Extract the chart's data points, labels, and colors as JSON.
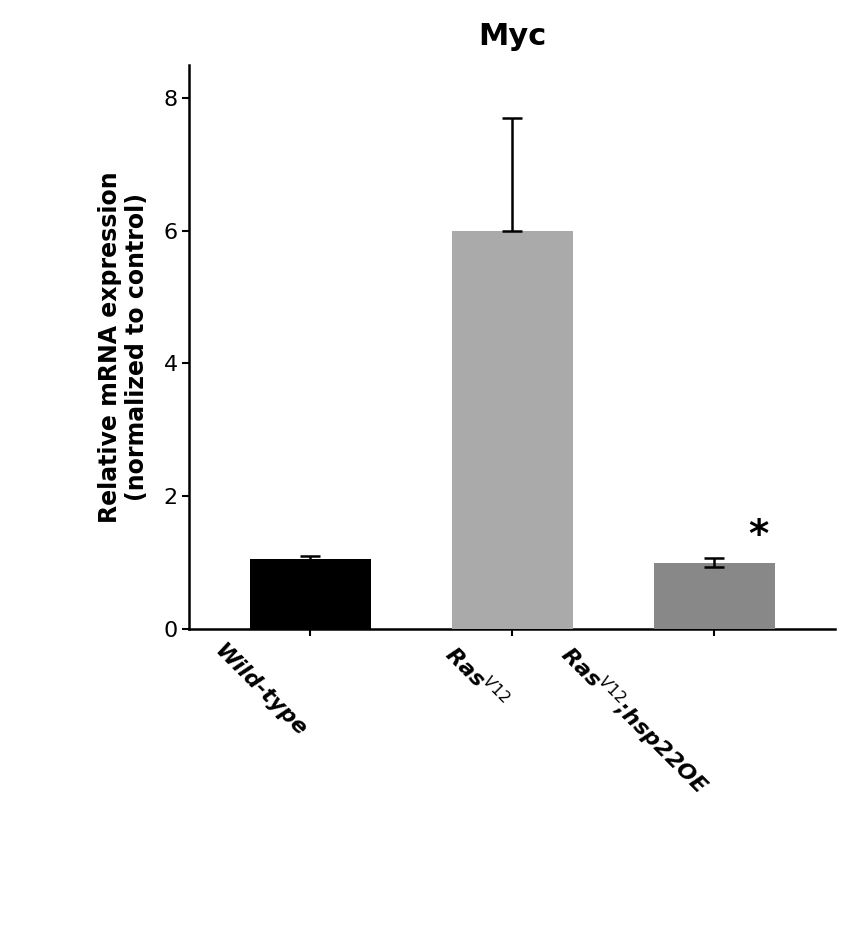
{
  "title": "Myc",
  "ylabel": "Relative mRNA expression\n(normalized to control)",
  "categories": [
    "Wild-type",
    "Ras$^{V12}$",
    "Ras$^{V12}$;hsp22OE"
  ],
  "values": [
    1.05,
    6.0,
    1.0
  ],
  "errors_up": [
    0.05,
    1.7,
    0.07
  ],
  "errors_down": [
    0.05,
    0.0,
    0.07
  ],
  "bar_colors": [
    "#000000",
    "#aaaaaa",
    "#888888"
  ],
  "ylim": [
    0,
    8.5
  ],
  "yticks": [
    0,
    2,
    4,
    6,
    8
  ],
  "bar_width": 0.6,
  "significance": [
    false,
    false,
    true
  ],
  "significance_symbol": "*",
  "title_fontsize": 22,
  "ylabel_fontsize": 17,
  "tick_fontsize": 16,
  "background_color": "#ffffff"
}
